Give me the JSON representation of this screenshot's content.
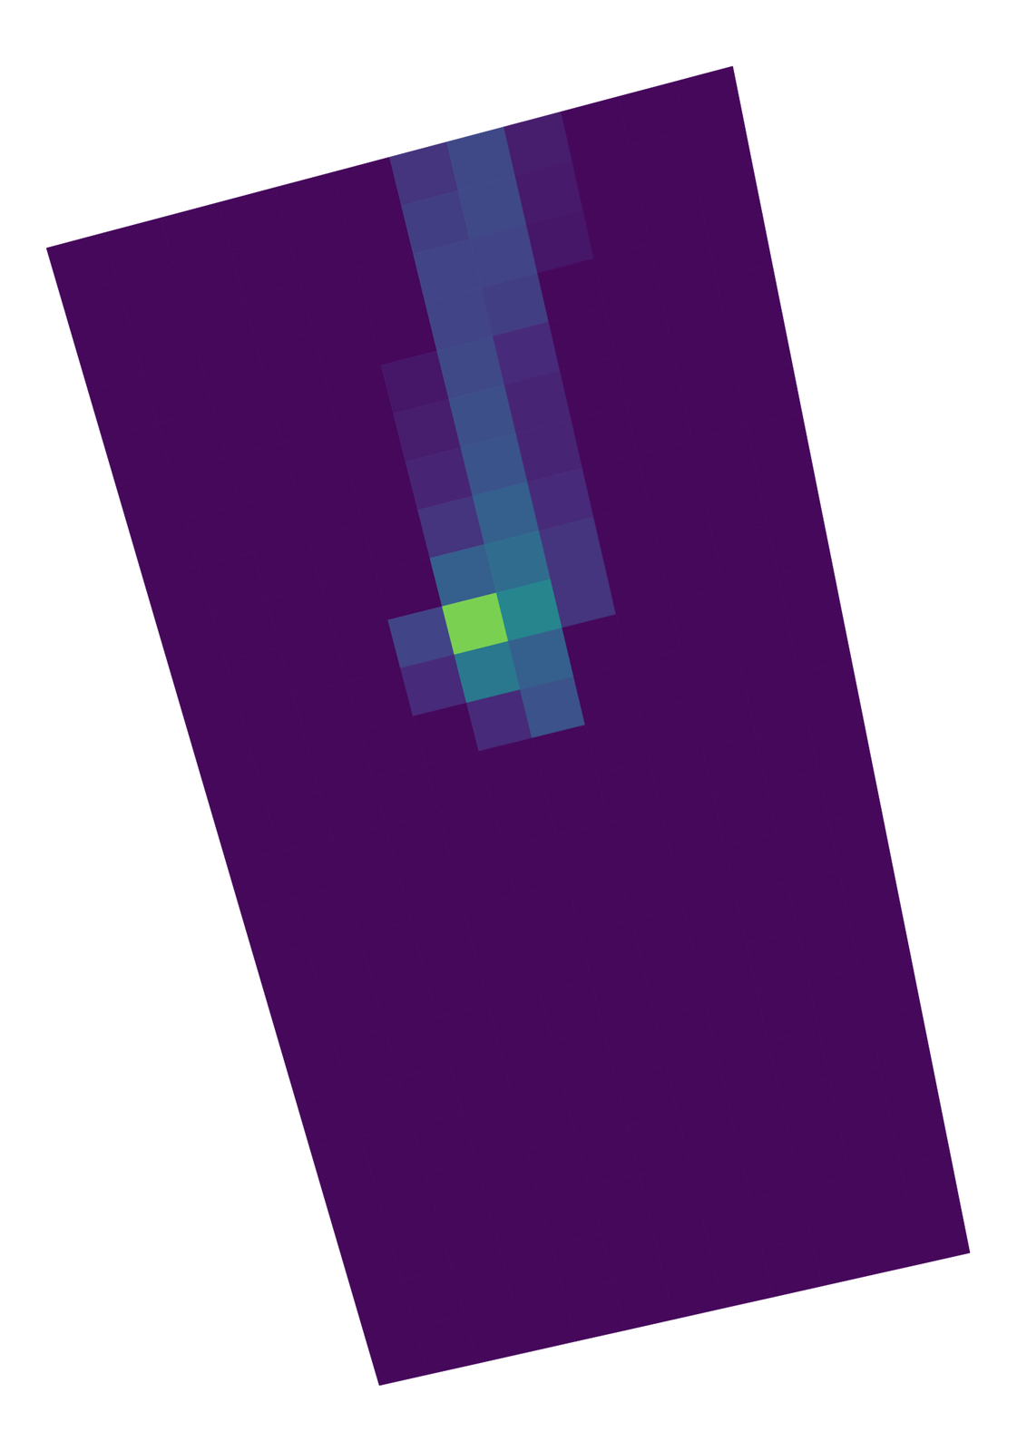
{
  "chart_data": {
    "type": "heatmap",
    "color_range": [
      0,
      1
    ],
    "tick_labels": false,
    "cells": [
      [
        0.02,
        0.02,
        0.02,
        0.02,
        0.02,
        0.02,
        0.15,
        0.22,
        0.08,
        0.02,
        0.02,
        0.02
      ],
      [
        0.02,
        0.02,
        0.02,
        0.02,
        0.02,
        0.02,
        0.18,
        0.22,
        0.07,
        0.02,
        0.02,
        0.02
      ],
      [
        0.02,
        0.02,
        0.02,
        0.02,
        0.02,
        0.02,
        0.2,
        0.2,
        0.06,
        0.02,
        0.02,
        0.02
      ],
      [
        0.02,
        0.02,
        0.02,
        0.02,
        0.02,
        0.02,
        0.2,
        0.18,
        0.02,
        0.02,
        0.02,
        0.02
      ],
      [
        0.02,
        0.02,
        0.02,
        0.02,
        0.02,
        0.06,
        0.22,
        0.12,
        0.02,
        0.02,
        0.02,
        0.02
      ],
      [
        0.02,
        0.02,
        0.02,
        0.02,
        0.02,
        0.08,
        0.24,
        0.1,
        0.02,
        0.02,
        0.02,
        0.02
      ],
      [
        0.02,
        0.02,
        0.02,
        0.02,
        0.02,
        0.1,
        0.26,
        0.1,
        0.02,
        0.02,
        0.02,
        0.02
      ],
      [
        0.02,
        0.02,
        0.02,
        0.02,
        0.02,
        0.15,
        0.3,
        0.12,
        0.02,
        0.02,
        0.02,
        0.02
      ],
      [
        0.02,
        0.02,
        0.02,
        0.02,
        0.02,
        0.3,
        0.35,
        0.15,
        0.02,
        0.02,
        0.02,
        0.02
      ],
      [
        0.02,
        0.02,
        0.02,
        0.02,
        0.2,
        0.8,
        0.45,
        0.15,
        0.02,
        0.02,
        0.02,
        0.02
      ],
      [
        0.02,
        0.02,
        0.02,
        0.02,
        0.12,
        0.4,
        0.3,
        0.02,
        0.02,
        0.02,
        0.02,
        0.02
      ],
      [
        0.02,
        0.02,
        0.02,
        0.02,
        0.02,
        0.12,
        0.25,
        0.02,
        0.02,
        0.02,
        0.02,
        0.02
      ],
      [
        0.02,
        0.02,
        0.02,
        0.02,
        0.02,
        0.02,
        0.02,
        0.02,
        0.02,
        0.02,
        0.02,
        0.02
      ],
      [
        0.02,
        0.02,
        0.02,
        0.02,
        0.02,
        0.02,
        0.02,
        0.02,
        0.02,
        0.02,
        0.02,
        0.02
      ],
      [
        0.02,
        0.02,
        0.02,
        0.02,
        0.02,
        0.02,
        0.02,
        0.02,
        0.02,
        0.02,
        0.02,
        0.02
      ],
      [
        0.02,
        0.02,
        0.02,
        0.02,
        0.02,
        0.02,
        0.02,
        0.02,
        0.02,
        0.02,
        0.02,
        0.02
      ],
      [
        0.02,
        0.02,
        0.02,
        0.02,
        0.02,
        0.02,
        0.02,
        0.02,
        0.02,
        0.02,
        0.02,
        0.02
      ],
      [
        0.02,
        0.02,
        0.02,
        0.02,
        0.02,
        0.02,
        0.02,
        0.02,
        0.02,
        0.02,
        0.02,
        0.02
      ],
      [
        0.02,
        0.02,
        0.02,
        0.02,
        0.02,
        0.02,
        0.02,
        0.02,
        0.02,
        0.02,
        0.02,
        0.02
      ],
      [
        0.02,
        0.02,
        0.02,
        0.02,
        0.02,
        0.02,
        0.02,
        0.02,
        0.02,
        0.02,
        0.02,
        0.02
      ],
      [
        0.02,
        0.02,
        0.02,
        0.02,
        0.02,
        0.02,
        0.02,
        0.02,
        0.02,
        0.02,
        0.02,
        0.02
      ],
      [
        0.02,
        0.02,
        0.02,
        0.02,
        0.02,
        0.02,
        0.02,
        0.02,
        0.02,
        0.02,
        0.02,
        0.02
      ],
      [
        0.02,
        0.02,
        0.02,
        0.02,
        0.02,
        0.02,
        0.02,
        0.02,
        0.02,
        0.02,
        0.02,
        0.02
      ],
      [
        0.02,
        0.02,
        0.02,
        0.02,
        0.02,
        0.02,
        0.02,
        0.02,
        0.02,
        0.02,
        0.02,
        0.02
      ]
    ]
  }
}
